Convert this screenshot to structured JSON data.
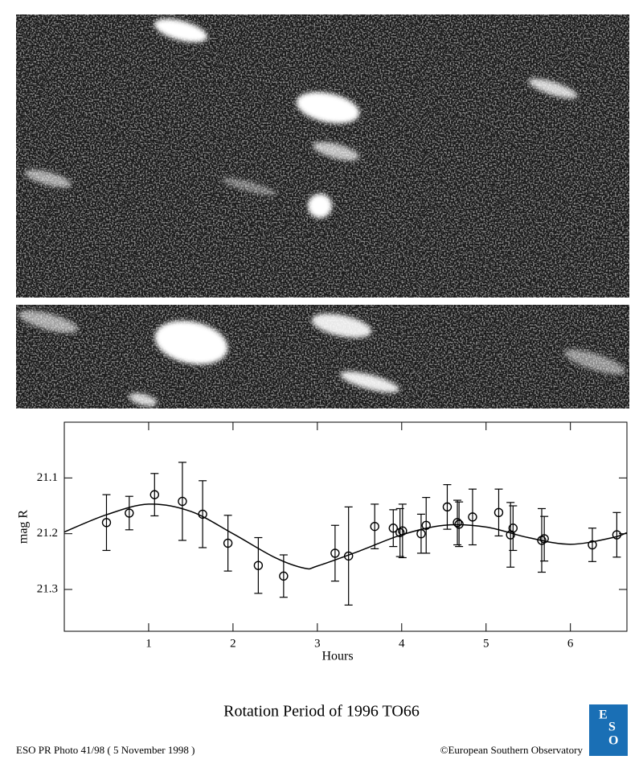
{
  "chart_data": {
    "type": "errorbar",
    "xlabel": "Hours",
    "ylabel": "mag R",
    "xlim": [
      0,
      6.67
    ],
    "ylim": [
      21.0,
      21.375
    ],
    "y_inverted": true,
    "xticks": [
      1,
      2,
      3,
      4,
      5,
      6
    ],
    "yticks": [
      21.1,
      21.2,
      21.3
    ],
    "series": [
      {
        "color": "#000000",
        "x": [
          0.5,
          0.77,
          1.07,
          1.4,
          1.64,
          1.94,
          2.3,
          2.6,
          3.21,
          3.37,
          3.68,
          3.9,
          3.98,
          4.01,
          4.23,
          4.29,
          4.54,
          4.66,
          4.68,
          4.84,
          5.15,
          5.29,
          5.32,
          5.66,
          5.69,
          6.26,
          6.55
        ],
        "values": [
          21.18,
          21.163,
          21.13,
          21.142,
          21.165,
          21.217,
          21.257,
          21.276,
          21.235,
          21.24,
          21.187,
          21.19,
          21.198,
          21.195,
          21.2,
          21.185,
          21.152,
          21.18,
          21.183,
          21.17,
          21.162,
          21.202,
          21.19,
          21.212,
          21.209,
          21.22,
          21.202
        ],
        "errors": [
          0.05,
          0.03,
          0.038,
          0.07,
          0.06,
          0.05,
          0.05,
          0.038,
          0.05,
          0.088,
          0.04,
          0.033,
          0.043,
          0.048,
          0.035,
          0.05,
          0.04,
          0.04,
          0.04,
          0.05,
          0.042,
          0.058,
          0.04,
          0.057,
          0.04,
          0.03,
          0.04
        ]
      },
      {
        "type": "line",
        "color": "#000000",
        "x": [
          0,
          0.5,
          1.0,
          1.5,
          2.0,
          2.5,
          2.85,
          3.0,
          3.5,
          4.0,
          4.5,
          5.0,
          5.5,
          6.0,
          6.5,
          6.67
        ],
        "values": [
          21.197,
          21.166,
          21.147,
          21.16,
          21.2,
          21.243,
          21.262,
          21.258,
          21.231,
          21.202,
          21.185,
          21.188,
          21.207,
          21.219,
          21.207,
          21.198
        ]
      }
    ]
  },
  "caption": "Rotation Period of 1996 TO66",
  "footer_left": "ESO PR Photo 41/98 ( 5 November 1998 )",
  "footer_right": "©European Southern Observatory",
  "logo": [
    "E",
    "S",
    "O"
  ]
}
